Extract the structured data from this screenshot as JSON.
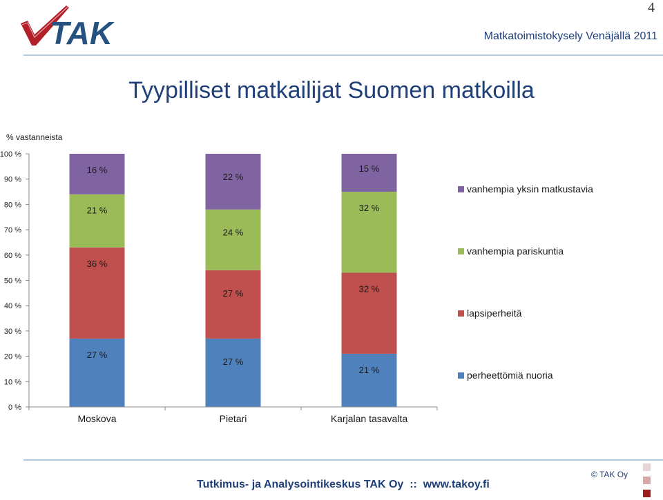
{
  "page": {
    "number": "4",
    "header_title": "Matkatoimistokysely Venäjällä 2011",
    "logo_text": "TAK",
    "title": "Tyypilliset matkailijat Suomen matkoilla",
    "footer_text": "Tutkimus- ja Analysointikeskus TAK Oy  ::  www.takoy.fi",
    "copyright": "© TAK Oy"
  },
  "chart_data": {
    "type": "bar",
    "stacked": true,
    "percent_stacked": true,
    "title": "",
    "unit_label": "% vastanneista",
    "ylim": [
      0,
      100
    ],
    "y_ticks": [
      "0 %",
      "10 %",
      "20 %",
      "30 %",
      "40 %",
      "50 %",
      "60 %",
      "70 %",
      "80 %",
      "90 %",
      "100 %"
    ],
    "categories": [
      "Moskova",
      "Pietari",
      "Karjalan tasavalta"
    ],
    "series": [
      {
        "name": "perheettömiä nuoria",
        "color": "#4f81bd",
        "values": [
          27,
          27,
          21
        ],
        "labels": [
          "27 %",
          "27 %",
          "21 %"
        ]
      },
      {
        "name": "lapsiperheitä",
        "color": "#c0504d",
        "values": [
          36,
          27,
          32
        ],
        "labels": [
          "36 %",
          "27 %",
          "32 %"
        ]
      },
      {
        "name": "vanhempia pariskuntia",
        "color": "#9bbb59",
        "values": [
          21,
          24,
          32
        ],
        "labels": [
          "21 %",
          "24 %",
          "32 %"
        ]
      },
      {
        "name": "vanhempia yksin matkustavia",
        "color": "#8064a2",
        "values": [
          16,
          22,
          15
        ],
        "labels": [
          "16 %",
          "22 %",
          "15 %"
        ]
      }
    ],
    "legend_position": "right",
    "legend_order": [
      "vanhempia yksin matkustavia",
      "vanhempia pariskuntia",
      "lapsiperheitä",
      "perheettömiä nuoria"
    ],
    "grid": false
  }
}
